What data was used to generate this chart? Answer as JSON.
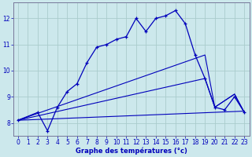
{
  "xlabel": "Graphe des températures (°c)",
  "bg_color": "#cce8ec",
  "grid_color": "#aacccc",
  "line_color": "#0000bb",
  "ylim": [
    7.5,
    12.6
  ],
  "xlim": [
    -0.5,
    23.5
  ],
  "yticks": [
    8,
    9,
    10,
    11,
    12
  ],
  "xticks": [
    0,
    1,
    2,
    3,
    4,
    5,
    6,
    7,
    8,
    9,
    10,
    11,
    12,
    13,
    14,
    15,
    16,
    17,
    18,
    19,
    20,
    21,
    22,
    23
  ],
  "series": [
    {
      "x": [
        0,
        2,
        3,
        4,
        5,
        6,
        7,
        8,
        9,
        10,
        11,
        12,
        13,
        14,
        15,
        16,
        17,
        18,
        19,
        20,
        21,
        22,
        23
      ],
      "y": [
        8.1,
        8.4,
        7.7,
        8.6,
        9.2,
        9.5,
        10.3,
        10.9,
        11.0,
        11.2,
        11.3,
        12.0,
        11.5,
        12.0,
        12.1,
        12.3,
        11.8,
        10.6,
        9.7,
        8.6,
        8.5,
        9.0,
        8.4
      ],
      "marker": true
    },
    {
      "x": [
        0,
        23
      ],
      "y": [
        8.1,
        8.45
      ],
      "marker": false
    },
    {
      "x": [
        0,
        19,
        20,
        22,
        23
      ],
      "y": [
        8.1,
        9.7,
        8.6,
        9.1,
        8.4
      ],
      "marker": false
    },
    {
      "x": [
        0,
        19,
        20,
        22,
        23
      ],
      "y": [
        8.1,
        10.6,
        8.6,
        9.1,
        8.4
      ],
      "marker": false
    }
  ]
}
